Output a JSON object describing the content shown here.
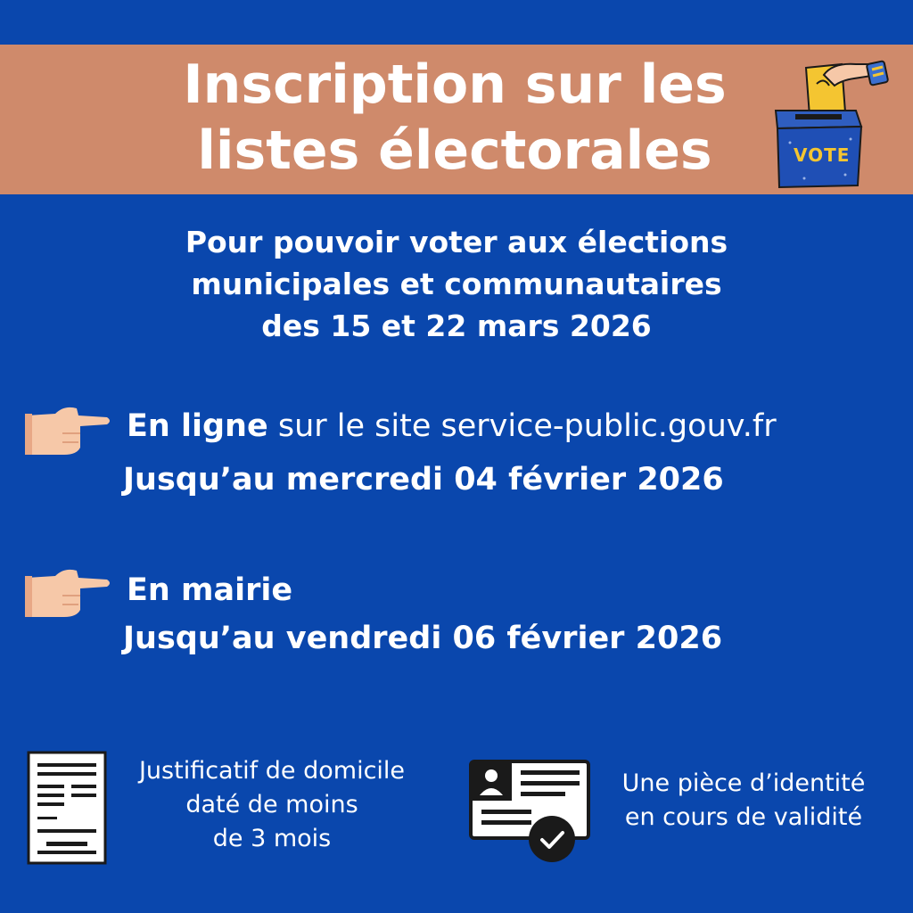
{
  "header": {
    "title_line1": "Inscription sur les",
    "title_line2": "listes électorales",
    "ballot_label": "VOTE"
  },
  "intro": {
    "line1": "Pour pouvoir voter aux élections",
    "line2": "municipales et communautaires",
    "line3": "des 15 et 22 mars 2026"
  },
  "online": {
    "label": "En ligne",
    "detail": " sur le site service-public.gouv.fr",
    "deadline": "Jusqu’au mercredi 04 février 2026"
  },
  "townhall": {
    "label": "En mairie",
    "deadline": "Jusqu’au vendredi 06 février 2026"
  },
  "documents": {
    "proof_line1": "Justificatif de domicile",
    "proof_line2": "daté de moins",
    "proof_line3": "de 3 mois",
    "id_line1": "Une pièce d’identité",
    "id_line2": "en cours de validité"
  },
  "colors": {
    "background": "#0a47ad",
    "banner": "#cf8a6b",
    "ballot_box": "#1f4fb5",
    "ballot_paper": "#f4c531",
    "skin": "#f6c8a8"
  },
  "icons": [
    "ballot-box-icon",
    "pointing-hand-icon",
    "document-icon",
    "id-card-icon",
    "check-icon"
  ]
}
